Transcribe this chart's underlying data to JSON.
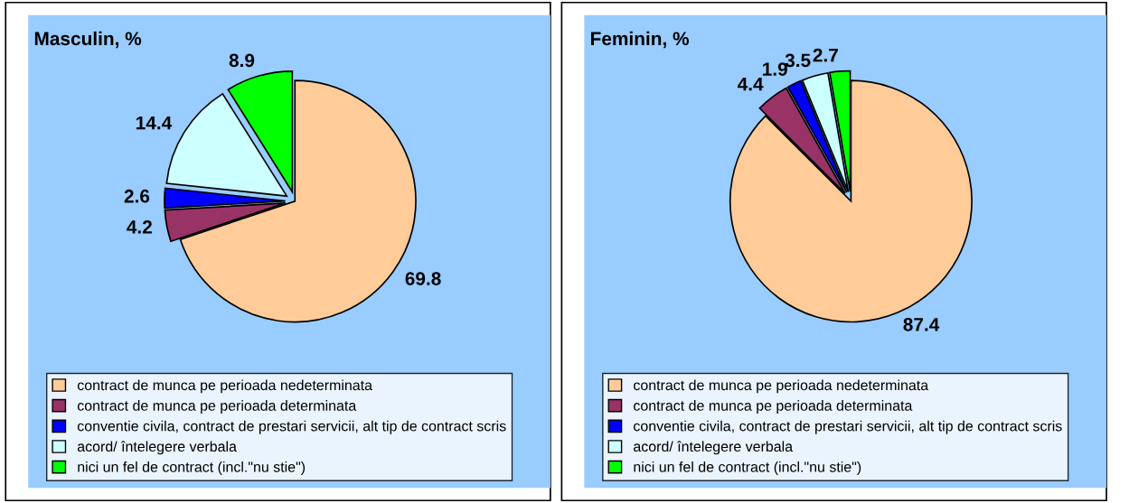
{
  "chart_data": [
    {
      "type": "pie",
      "title": "Masculin, %",
      "categories": [
        "contract de munca pe perioada nedeterminata",
        "contract de munca pe perioada determinata",
        "conventie civila, contract de prestari servicii, alt tip de contract scris",
        "acord/ întelegere verbala",
        "nici un fel de contract (incl.\"nu stie\")"
      ],
      "values": [
        69.8,
        4.2,
        2.6,
        14.4,
        8.9
      ],
      "colors": [
        "#ffcc99",
        "#993366",
        "#0000ff",
        "#ccffff",
        "#00ff00"
      ],
      "data_labels": true,
      "legend": "bottom"
    },
    {
      "type": "pie",
      "title": "Feminin, %",
      "categories": [
        "contract de munca pe perioada nedeterminata",
        "contract de munca pe perioada determinata",
        "conventie civila, contract de prestari servicii, alt tip de contract scris",
        "acord/ întelegere verbala",
        "nici un fel de contract (incl.\"nu stie\")"
      ],
      "values": [
        87.4,
        4.4,
        1.9,
        3.5,
        2.7
      ],
      "colors": [
        "#ffcc99",
        "#993366",
        "#0000ff",
        "#ccffff",
        "#00ff00"
      ],
      "data_labels": true,
      "legend": "bottom"
    }
  ]
}
